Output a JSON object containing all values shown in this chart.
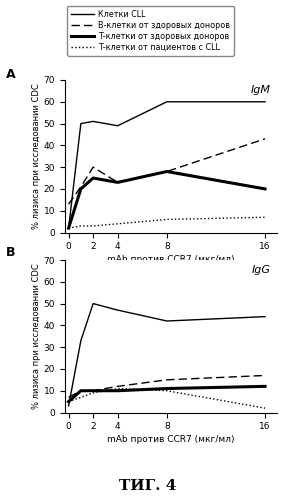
{
  "x": [
    0,
    1,
    2,
    4,
    8,
    16
  ],
  "panel_A": {
    "title": "IgM",
    "CLL_cells": [
      2,
      50,
      51,
      49,
      60,
      60
    ],
    "B_cells_healthy": [
      13,
      21,
      30,
      23,
      28,
      43
    ],
    "T_cells_healthy": [
      2,
      20,
      25,
      23,
      28,
      20
    ],
    "T_cells_CLL": [
      2,
      3,
      3,
      4,
      6,
      7
    ]
  },
  "panel_B": {
    "title": "IgG",
    "CLL_cells": [
      3,
      33,
      50,
      47,
      42,
      44
    ],
    "B_cells_healthy": [
      7,
      10,
      10,
      12,
      15,
      17
    ],
    "T_cells_healthy": [
      5,
      10,
      10,
      10,
      11,
      12
    ],
    "T_cells_CLL": [
      5,
      7,
      9,
      11,
      10,
      2
    ]
  },
  "legend_labels": [
    "Клетки CLL",
    "В-клетки от здоровых доноров",
    "Т-клетки от здоровых доноров",
    "Т-клетки от пациентов с CLL"
  ],
  "ylabel": "% лизиса при исследовании CDC",
  "xlabel": "mAb против CCR7 (мкг/мл)",
  "fig_label": "ΤИГ. 4",
  "ylim": [
    0,
    70
  ],
  "xticks": [
    0,
    2,
    4,
    8,
    16
  ],
  "yticks": [
    0,
    10,
    20,
    30,
    40,
    50,
    60,
    70
  ]
}
